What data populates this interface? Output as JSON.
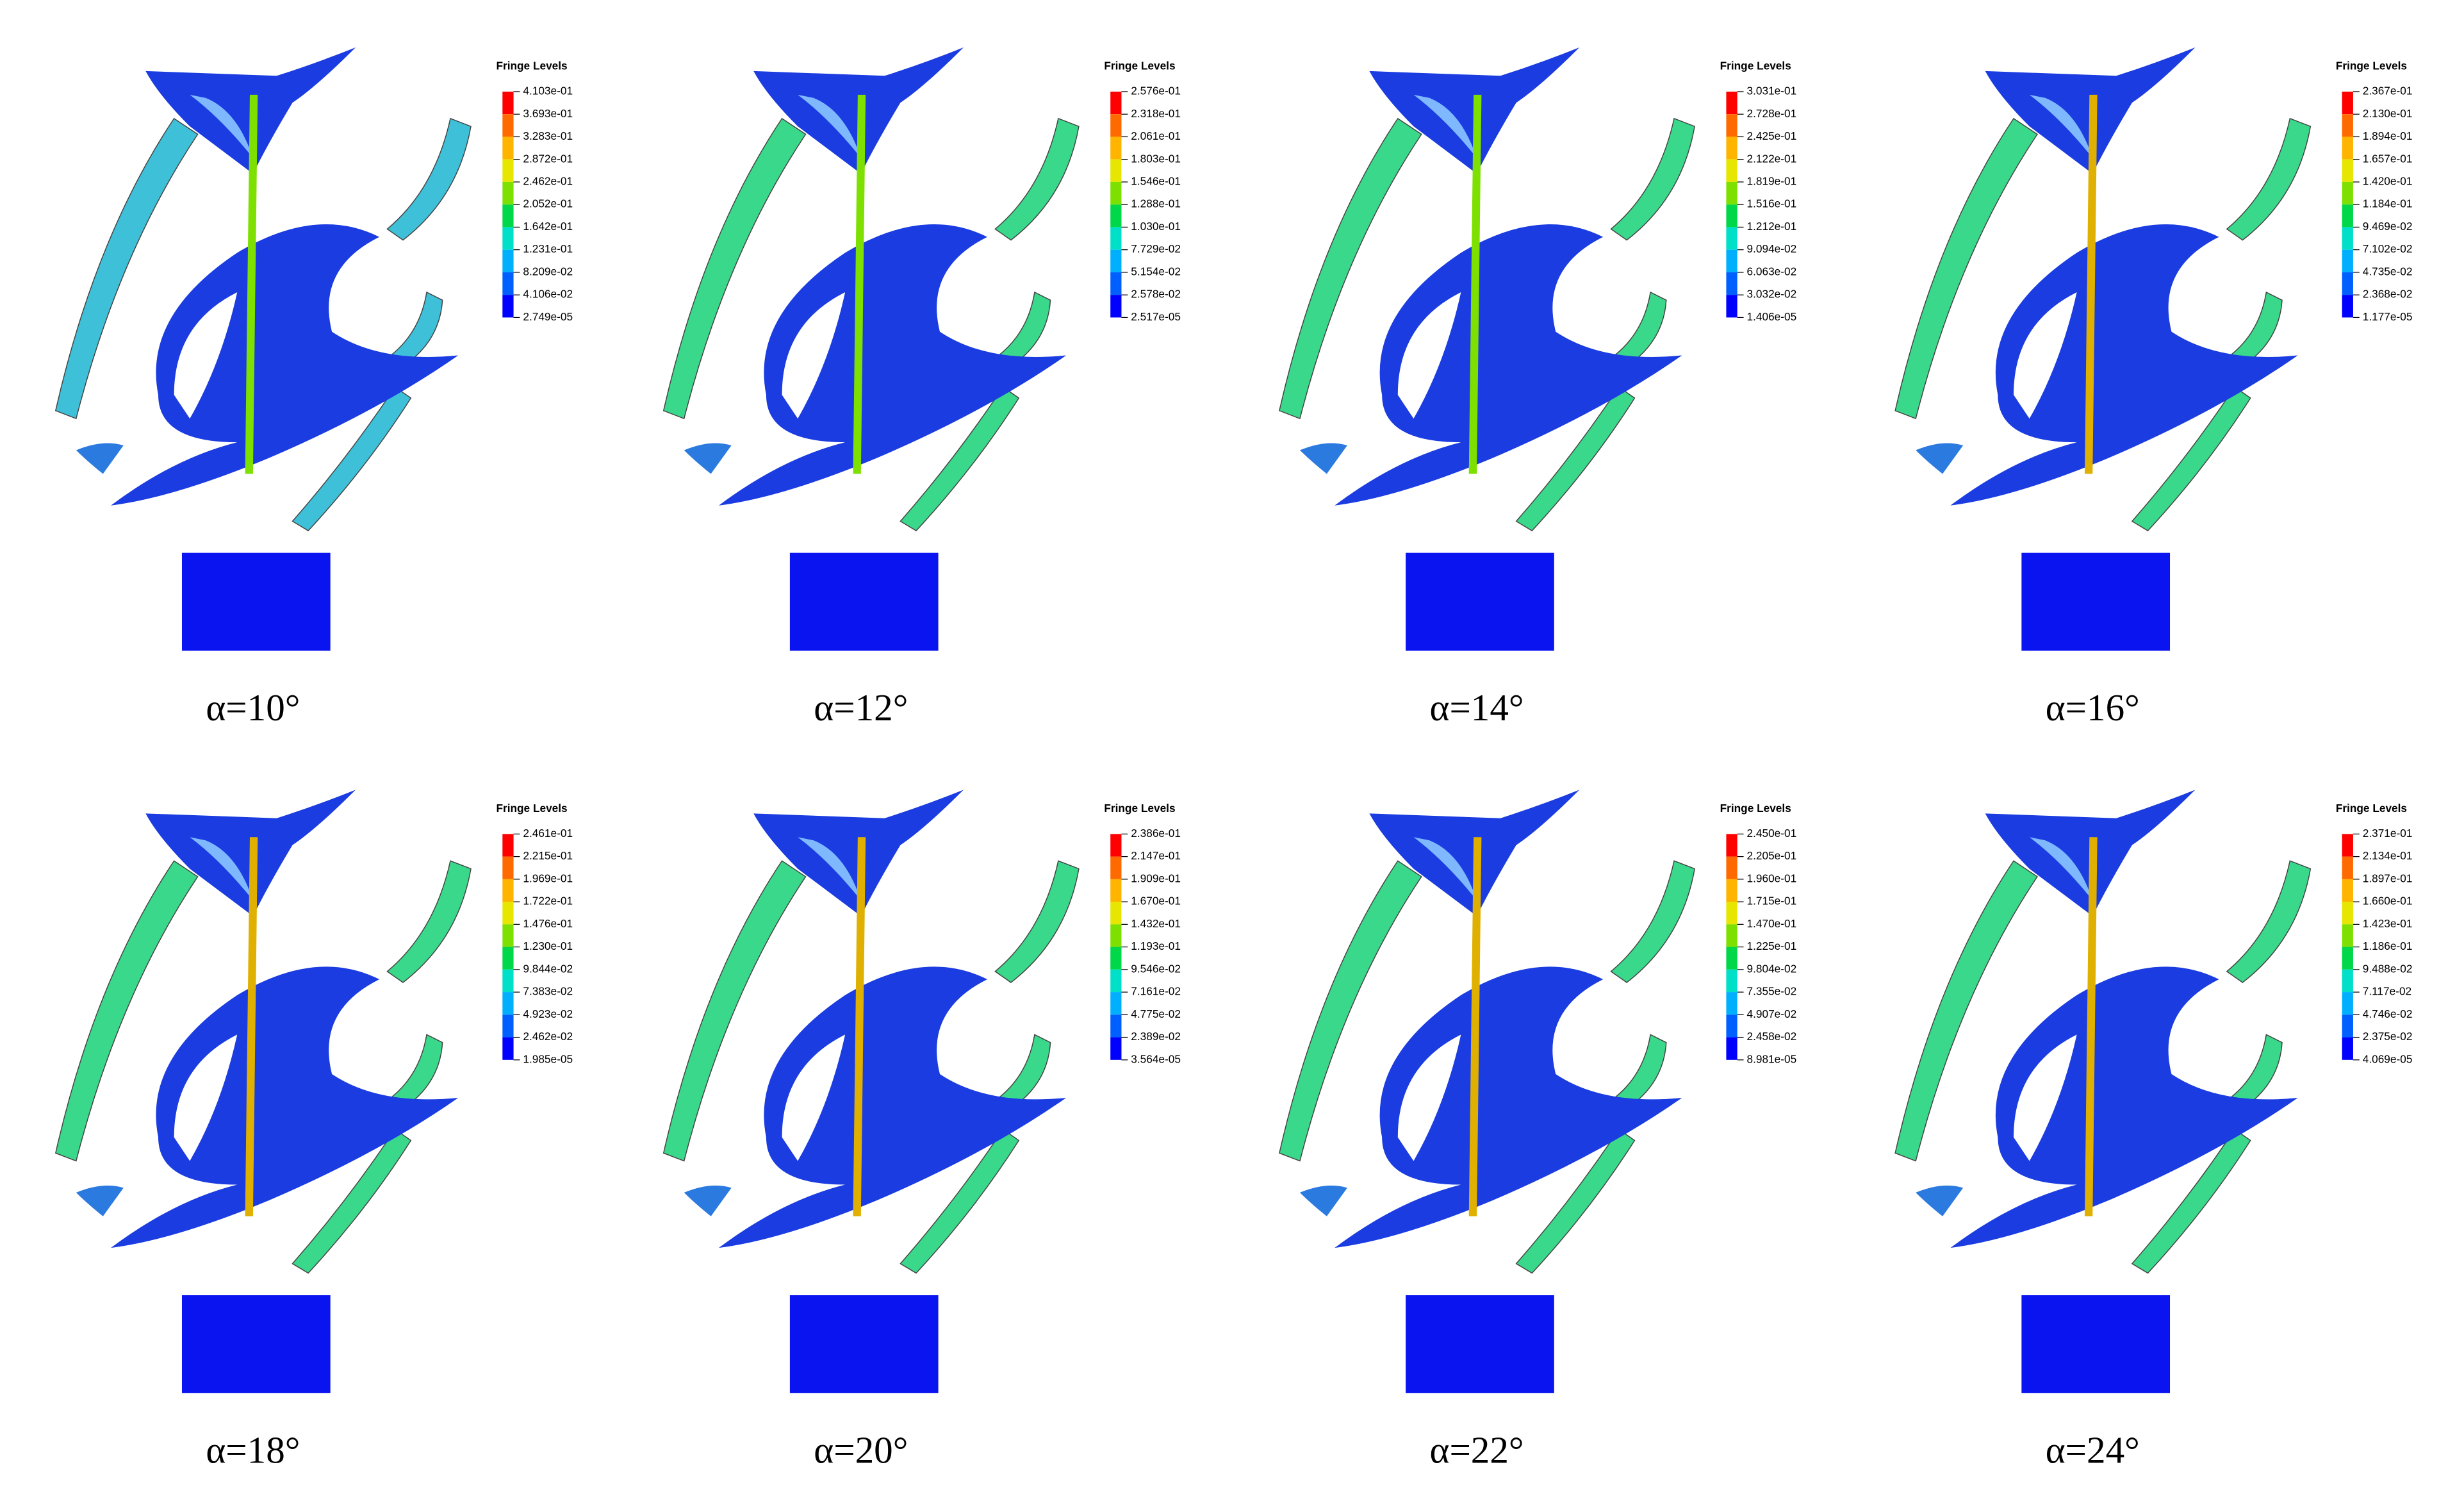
{
  "panels": [
    {
      "caption": "α=10°",
      "legend_title": "Fringe Levels",
      "levels": [
        "4.103e-01",
        "3.693e-01",
        "3.283e-01",
        "2.872e-01",
        "2.462e-01",
        "2.052e-01",
        "1.642e-01",
        "1.231e-01",
        "8.209e-02",
        "4.106e-02",
        "2.749e-05"
      ]
    },
    {
      "caption": "α=12°",
      "legend_title": "Fringe Levels",
      "levels": [
        "2.576e-01",
        "2.318e-01",
        "2.061e-01",
        "1.803e-01",
        "1.546e-01",
        "1.288e-01",
        "1.030e-01",
        "7.729e-02",
        "5.154e-02",
        "2.578e-02",
        "2.517e-05"
      ]
    },
    {
      "caption": "α=14°",
      "legend_title": "Fringe Levels",
      "levels": [
        "3.031e-01",
        "2.728e-01",
        "2.425e-01",
        "2.122e-01",
        "1.819e-01",
        "1.516e-01",
        "1.212e-01",
        "9.094e-02",
        "6.063e-02",
        "3.032e-02",
        "1.406e-05"
      ]
    },
    {
      "caption": "α=16°",
      "legend_title": "Fringe Levels",
      "levels": [
        "2.367e-01",
        "2.130e-01",
        "1.894e-01",
        "1.657e-01",
        "1.420e-01",
        "1.184e-01",
        "9.469e-02",
        "7.102e-02",
        "4.735e-02",
        "2.368e-02",
        "1.177e-05"
      ]
    },
    {
      "caption": "α=18°",
      "legend_title": "Fringe Levels",
      "levels": [
        "2.461e-01",
        "2.215e-01",
        "1.969e-01",
        "1.722e-01",
        "1.476e-01",
        "1.230e-01",
        "9.844e-02",
        "7.383e-02",
        "4.923e-02",
        "2.462e-02",
        "1.985e-05"
      ]
    },
    {
      "caption": "α=20°",
      "legend_title": "Fringe Levels",
      "levels": [
        "2.386e-01",
        "2.147e-01",
        "1.909e-01",
        "1.670e-01",
        "1.432e-01",
        "1.193e-01",
        "9.546e-02",
        "7.161e-02",
        "4.775e-02",
        "2.389e-02",
        "3.564e-05"
      ]
    },
    {
      "caption": "α=22°",
      "legend_title": "Fringe Levels",
      "levels": [
        "2.450e-01",
        "2.205e-01",
        "1.960e-01",
        "1.715e-01",
        "1.470e-01",
        "1.225e-01",
        "9.804e-02",
        "7.355e-02",
        "4.907e-02",
        "2.458e-02",
        "8.981e-05"
      ]
    },
    {
      "caption": "α=24°",
      "legend_title": "Fringe Levels",
      "levels": [
        "2.371e-01",
        "2.134e-01",
        "1.897e-01",
        "1.660e-01",
        "1.423e-01",
        "1.186e-01",
        "9.488e-02",
        "7.117e-02",
        "4.746e-02",
        "2.375e-02",
        "4.069e-05"
      ]
    }
  ]
}
